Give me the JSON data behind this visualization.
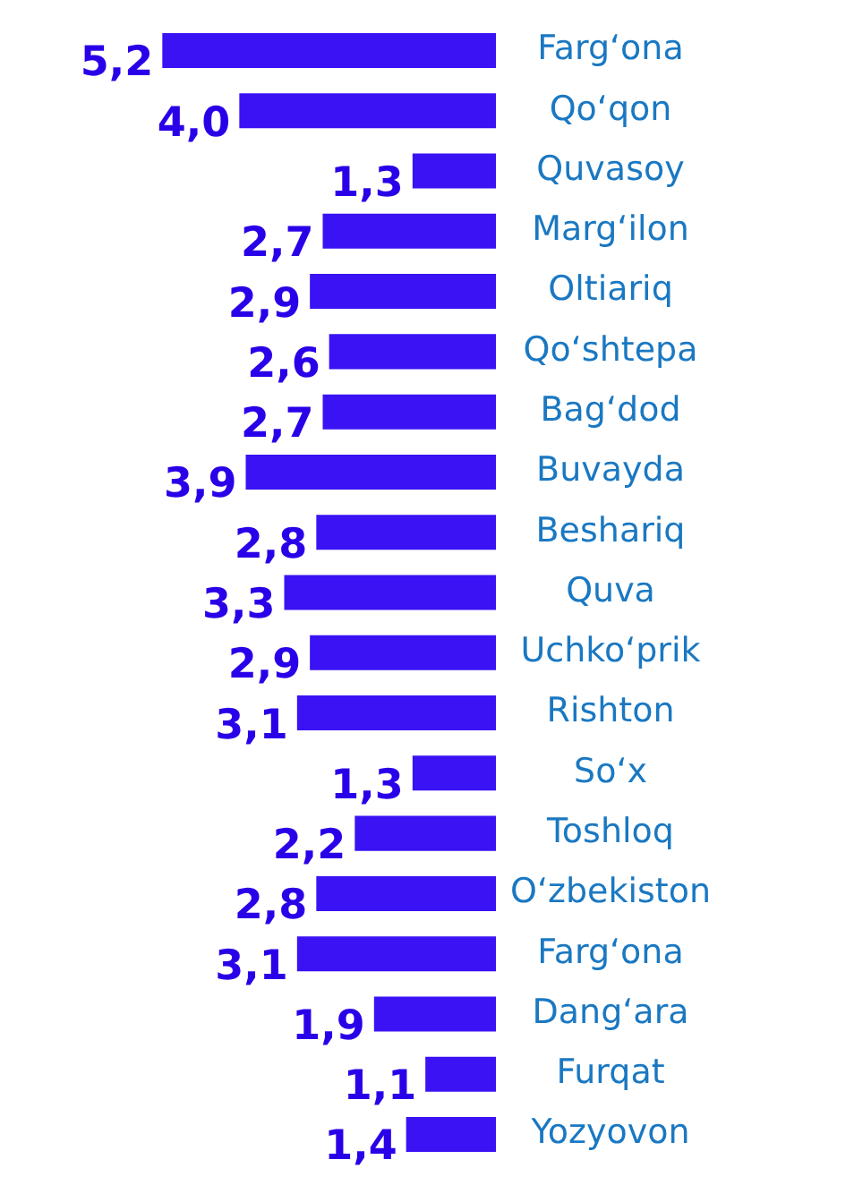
{
  "chart_data": {
    "type": "bar",
    "orientation": "horizontal",
    "categories": [
      "Farg‘ona",
      "Qo‘qon",
      "Quvasoy",
      "Marg‘ilon",
      "Oltiariq",
      "Qo‘shtepa",
      "Bag‘dod",
      "Buvayda",
      "Beshariq",
      "Quva",
      "Uchko‘prik",
      "Rishton",
      "So‘x",
      "Toshloq",
      "O‘zbekiston",
      "Farg‘ona",
      "Dang‘ara",
      "Furqat",
      "Yozyovon"
    ],
    "values": [
      5.2,
      4.0,
      1.3,
      2.7,
      2.9,
      2.6,
      2.7,
      3.9,
      2.8,
      3.3,
      2.9,
      3.1,
      1.3,
      2.2,
      2.8,
      3.1,
      1.9,
      1.1,
      1.4
    ],
    "value_labels": [
      "5,2",
      "4,0",
      "1,3",
      "2,7",
      "2,9",
      "2,6",
      "2,7",
      "3,9",
      "2,8",
      "3,3",
      "2,9",
      "3,1",
      "1,3",
      "2,2",
      "2,8",
      "3,1",
      "1,9",
      "1,1",
      "1,4"
    ],
    "color": "#3a12f4",
    "tick_labels": "y",
    "grid": false,
    "legend": false
  }
}
